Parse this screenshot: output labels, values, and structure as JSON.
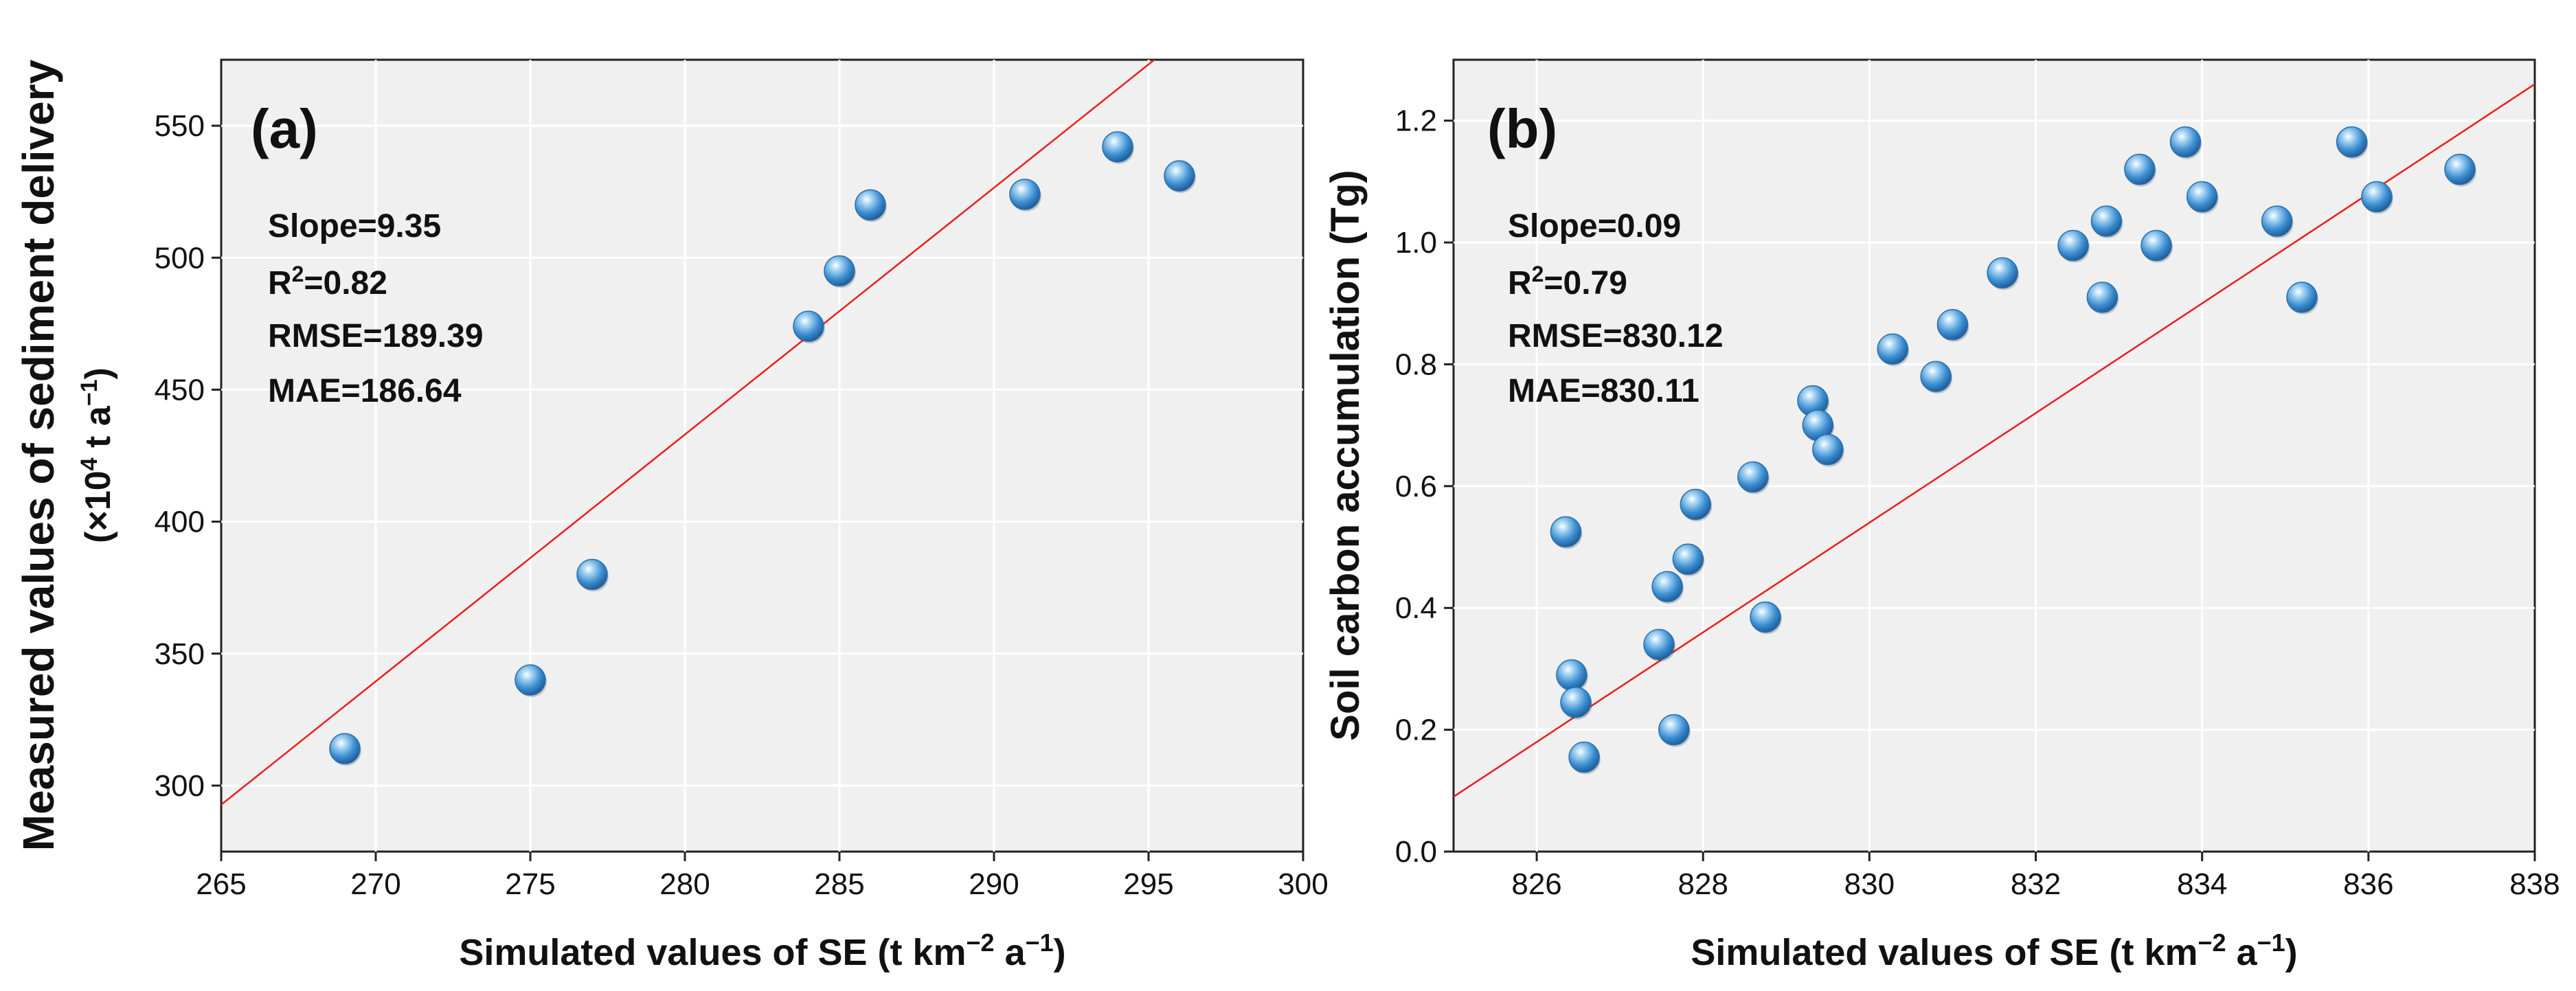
{
  "chart_data": [
    {
      "type": "scatter",
      "panel_label": "(a)",
      "xlabel_main": "Simulated values of SE (t km",
      "xlabel_sup1": "−2",
      "xlabel_mid": " a",
      "xlabel_sup2": "−1",
      "xlabel_end": ")",
      "ylabel_line1": "Measured values of sediment delivery",
      "ylabel_line2_pre": "(×10",
      "ylabel_line2_sup1": "4",
      "ylabel_line2_mid": " t a",
      "ylabel_line2_sup2": "−1",
      "ylabel_line2_end": ")",
      "xlim": [
        265,
        300
      ],
      "ylim": [
        275,
        575
      ],
      "xticks": [
        265,
        270,
        275,
        280,
        285,
        290,
        295,
        300
      ],
      "yticks": [
        300,
        350,
        400,
        450,
        500,
        550
      ],
      "x": [
        269,
        275,
        277,
        284,
        285,
        286,
        291,
        294,
        296
      ],
      "y": [
        314,
        340,
        380,
        474,
        495,
        520,
        524,
        542,
        531
      ],
      "fit_line": {
        "slope": 9.35,
        "intercept": -2185
      },
      "stats": {
        "slope_text": "Slope=9.35",
        "r2_pre": "R",
        "r2_sup": "2",
        "r2_post": "=0.82",
        "rmse_text": "RMSE=189.39",
        "mae_text": "MAE=186.64"
      },
      "grid": true,
      "marker_color": "#3d8fd1",
      "fit_color": "#ee1c1c"
    },
    {
      "type": "scatter",
      "panel_label": "(b)",
      "xlabel_main": "Simulated values of SE (t km",
      "xlabel_sup1": "−2",
      "xlabel_mid": " a",
      "xlabel_sup2": "−1",
      "xlabel_end": ")",
      "ylabel_line1": "Soil carbon accumulation (Tg)",
      "xlim": [
        825,
        838
      ],
      "ylim": [
        0,
        1.3
      ],
      "xticks": [
        826,
        828,
        830,
        832,
        834,
        836,
        838
      ],
      "yticks": [
        0.0,
        0.2,
        0.4,
        0.6,
        0.8,
        1.0,
        1.2
      ],
      "ytick_labels": [
        "0.0",
        "0.2",
        "0.4",
        "0.6",
        "0.8",
        "1.0",
        "1.2"
      ],
      "x": [
        826.35,
        826.42,
        826.47,
        826.57,
        827.47,
        827.57,
        827.65,
        827.82,
        827.91,
        828.6,
        828.75,
        829.32,
        829.38,
        829.5,
        830.28,
        830.8,
        831.0,
        831.6,
        832.45,
        832.8,
        832.85,
        833.25,
        833.45,
        833.8,
        834.0,
        834.9,
        835.2,
        835.8,
        836.1,
        837.1
      ],
      "y": [
        0.525,
        0.29,
        0.245,
        0.155,
        0.34,
        0.435,
        0.2,
        0.48,
        0.57,
        0.615,
        0.385,
        0.74,
        0.7,
        0.66,
        0.825,
        0.78,
        0.865,
        0.95,
        0.995,
        0.91,
        1.035,
        1.12,
        0.995,
        1.165,
        1.075,
        1.035,
        0.91,
        1.165,
        1.075,
        1.12
      ],
      "fit_line": {
        "slope": 0.09,
        "intercept": -74.16
      },
      "stats": {
        "slope_text": "Slope=0.09",
        "r2_pre": "R",
        "r2_sup": "2",
        "r2_post": "=0.79",
        "rmse_text": "RMSE=830.12",
        "mae_text": "MAE=830.11"
      },
      "grid": true,
      "marker_color": "#3d8fd1",
      "fit_color": "#ee1c1c"
    }
  ]
}
